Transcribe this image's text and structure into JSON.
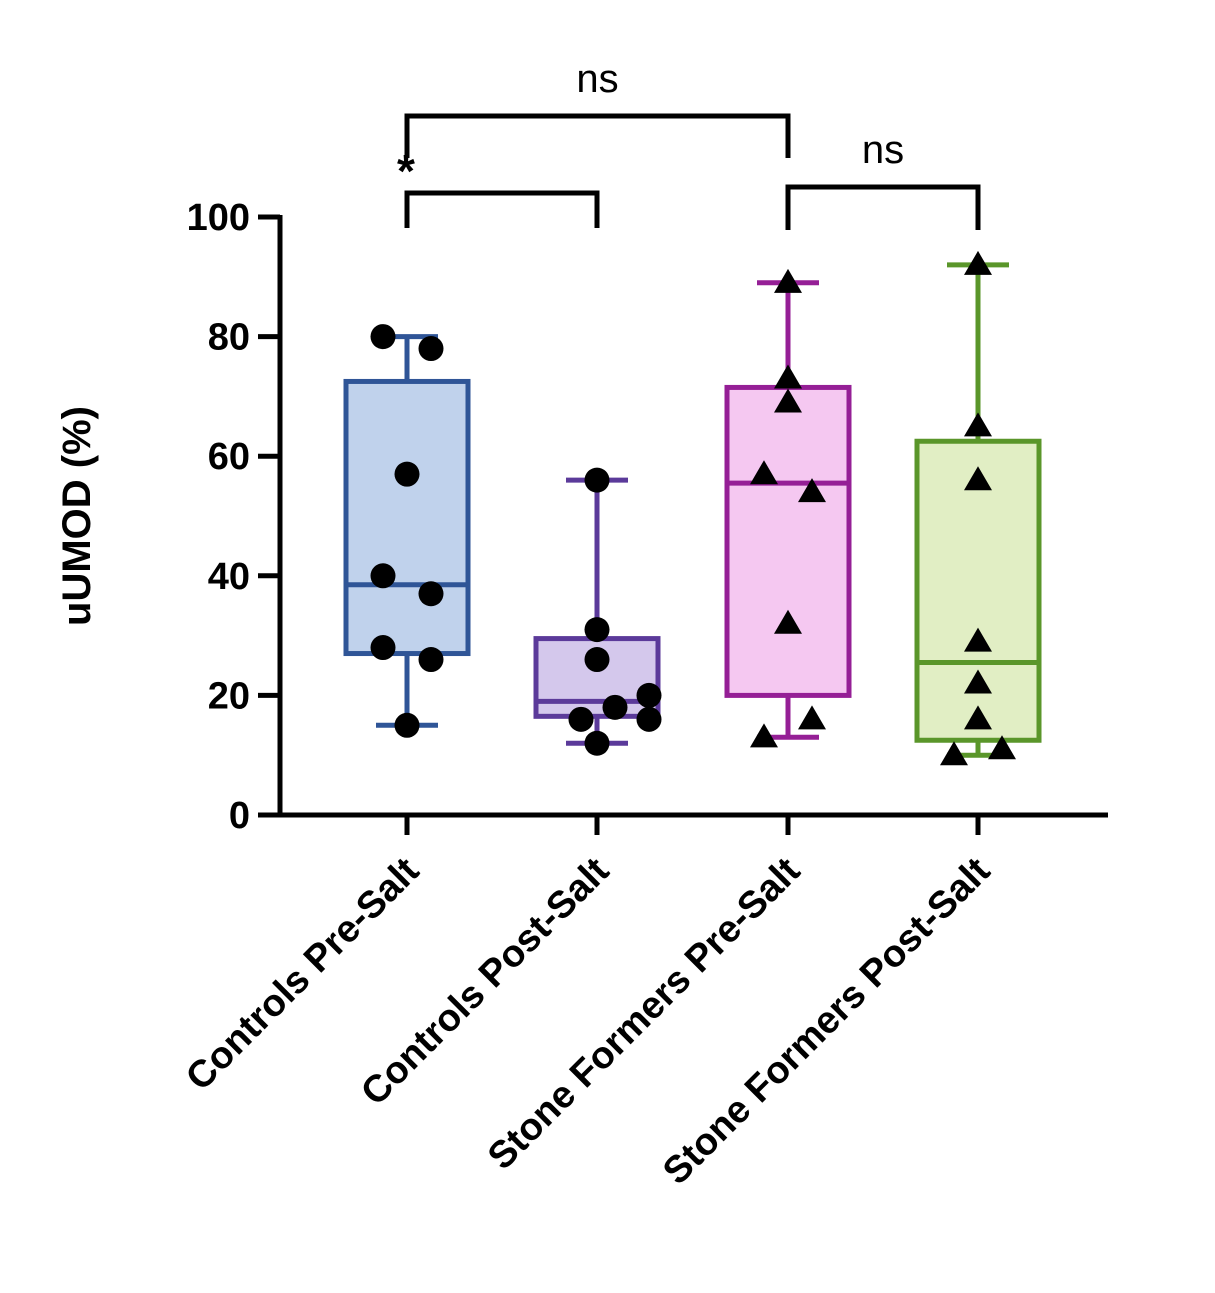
{
  "chart_data": {
    "type": "box",
    "ylabel": "uUMOD (%)",
    "xlabel": "",
    "ylim": [
      0,
      100
    ],
    "yticks": [
      0,
      20,
      40,
      60,
      80,
      100
    ],
    "categories": [
      "Controls Pre-Salt",
      "Controls Post-Salt",
      "Stone Formers Pre-Salt",
      "Stone Formers Post-Salt"
    ],
    "series": [
      {
        "category": "Controls Pre-Salt",
        "marker": "circle",
        "stroke": "#2f5597",
        "fill": "#c0d2ec",
        "box": {
          "min": 15,
          "q1": 27,
          "median": 38.5,
          "q3": 72.5,
          "max": 80
        },
        "points": [
          80,
          78,
          57,
          40,
          37,
          28,
          26,
          15
        ]
      },
      {
        "category": "Controls Post-Salt",
        "marker": "circle",
        "stroke": "#5b3a9a",
        "fill": "#d4c8ec",
        "box": {
          "min": 12,
          "q1": 16.5,
          "median": 19,
          "q3": 29.5,
          "max": 56
        },
        "points": [
          56,
          31,
          26,
          20,
          18,
          16,
          16,
          12
        ]
      },
      {
        "category": "Stone Formers Pre-Salt",
        "marker": "triangle",
        "stroke": "#951f96",
        "fill": "#f5c8f1",
        "box": {
          "min": 13,
          "q1": 20,
          "median": 55.5,
          "q3": 71.5,
          "max": 89
        },
        "points": [
          89,
          73,
          69,
          57,
          54,
          32,
          16,
          13
        ]
      },
      {
        "category": "Stone Formers Post-Salt",
        "marker": "triangle",
        "stroke": "#5a962a",
        "fill": "#e1eec4",
        "box": {
          "min": 10,
          "q1": 12.5,
          "median": 25.5,
          "q3": 62.5,
          "max": 92
        },
        "points": [
          92,
          65,
          56,
          29,
          22,
          16,
          10,
          11
        ]
      }
    ],
    "significance": [
      {
        "from": 0,
        "to": 2,
        "label": "ns"
      },
      {
        "from": 0,
        "to": 1,
        "label": "*"
      },
      {
        "from": 2,
        "to": 3,
        "label": "ns"
      }
    ]
  }
}
